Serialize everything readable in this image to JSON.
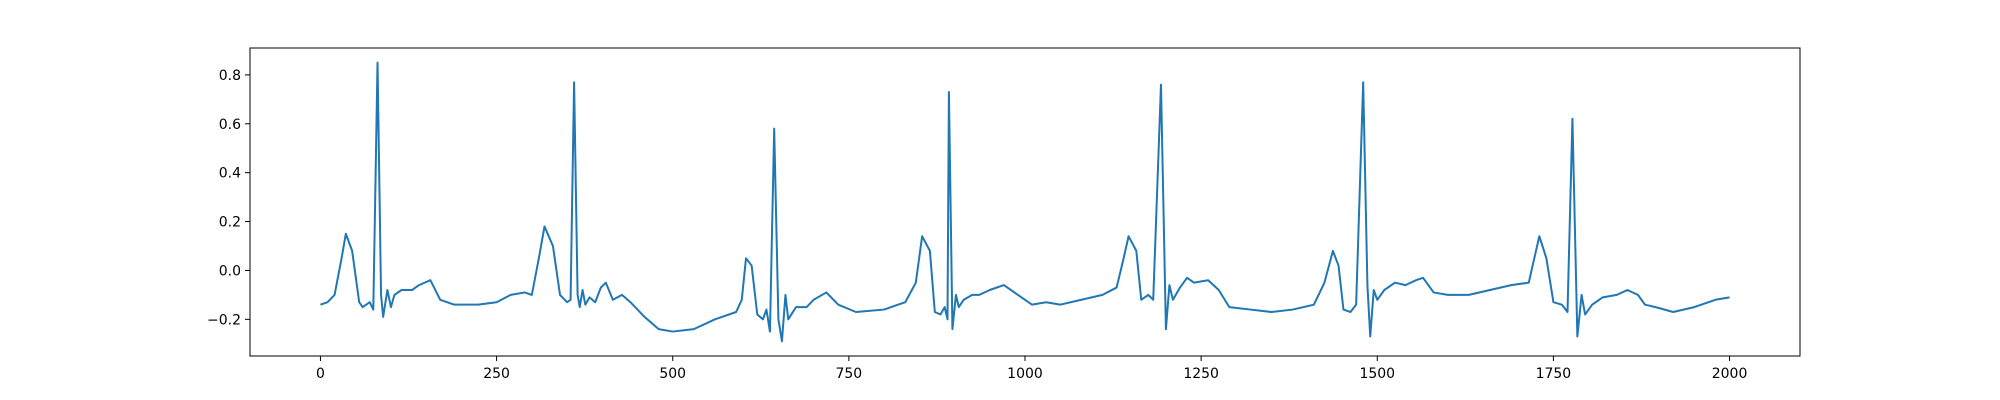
{
  "chart_data": {
    "type": "line",
    "x": [
      0,
      10,
      20,
      30,
      36,
      45,
      55,
      60,
      70,
      75,
      81,
      86,
      89,
      95,
      100,
      105,
      115,
      130,
      140,
      156,
      170,
      190,
      210,
      224,
      250,
      270,
      290,
      300,
      310,
      318,
      330,
      340,
      350,
      355,
      360,
      365,
      368,
      372,
      376,
      382,
      390,
      398,
      405,
      415,
      428,
      440,
      460,
      480,
      500,
      530,
      560,
      590,
      598,
      604,
      612,
      620,
      628,
      633,
      638,
      644,
      650,
      655,
      660,
      664,
      675,
      690,
      700,
      718,
      735,
      760,
      800,
      830,
      845,
      854,
      865,
      872,
      880,
      886,
      890,
      892,
      897,
      902,
      906,
      913,
      925,
      935,
      950,
      970,
      990,
      1010,
      1030,
      1050,
      1080,
      1110,
      1130,
      1140,
      1147,
      1158,
      1165,
      1175,
      1182,
      1193,
      1200,
      1205,
      1210,
      1220,
      1230,
      1240,
      1260,
      1275,
      1290,
      1320,
      1350,
      1380,
      1410,
      1425,
      1437,
      1445,
      1452,
      1462,
      1470,
      1480,
      1486,
      1490,
      1495,
      1500,
      1510,
      1525,
      1540,
      1555,
      1565,
      1580,
      1600,
      1630,
      1660,
      1690,
      1715,
      1730,
      1740,
      1750,
      1762,
      1770,
      1777,
      1784,
      1790,
      1795,
      1805,
      1820,
      1840,
      1855,
      1870,
      1880,
      1895,
      1920,
      1950,
      1980,
      2000
    ],
    "series": [
      {
        "color": "#1f77b4",
        "values": [
          -0.14,
          -0.13,
          -0.1,
          0.05,
          0.15,
          0.08,
          -0.13,
          -0.15,
          -0.13,
          -0.16,
          0.85,
          -0.1,
          -0.19,
          -0.08,
          -0.15,
          -0.1,
          -0.08,
          -0.08,
          -0.06,
          -0.04,
          -0.12,
          -0.14,
          -0.14,
          -0.14,
          -0.13,
          -0.1,
          -0.09,
          -0.1,
          0.05,
          0.18,
          0.1,
          -0.1,
          -0.13,
          -0.12,
          0.77,
          -0.1,
          -0.15,
          -0.08,
          -0.14,
          -0.11,
          -0.13,
          -0.07,
          -0.05,
          -0.12,
          -0.1,
          -0.13,
          -0.19,
          -0.24,
          -0.25,
          -0.24,
          -0.2,
          -0.17,
          -0.12,
          0.05,
          0.02,
          -0.18,
          -0.2,
          -0.16,
          -0.25,
          0.58,
          -0.2,
          -0.29,
          -0.1,
          -0.2,
          -0.15,
          -0.15,
          -0.12,
          -0.09,
          -0.14,
          -0.17,
          -0.16,
          -0.13,
          -0.05,
          0.14,
          0.08,
          -0.17,
          -0.18,
          -0.15,
          -0.2,
          0.73,
          -0.24,
          -0.1,
          -0.15,
          -0.12,
          -0.1,
          -0.1,
          -0.08,
          -0.06,
          -0.1,
          -0.14,
          -0.13,
          -0.14,
          -0.12,
          -0.1,
          -0.07,
          0.05,
          0.14,
          0.08,
          -0.12,
          -0.1,
          -0.12,
          0.76,
          -0.24,
          -0.06,
          -0.12,
          -0.07,
          -0.03,
          -0.05,
          -0.04,
          -0.08,
          -0.15,
          -0.16,
          -0.17,
          -0.16,
          -0.14,
          -0.05,
          0.08,
          0.02,
          -0.16,
          -0.17,
          -0.14,
          0.77,
          -0.06,
          -0.27,
          -0.08,
          -0.12,
          -0.08,
          -0.05,
          -0.06,
          -0.04,
          -0.03,
          -0.09,
          -0.1,
          -0.1,
          -0.08,
          -0.06,
          -0.05,
          0.14,
          0.05,
          -0.13,
          -0.14,
          -0.17,
          0.62,
          -0.27,
          -0.1,
          -0.18,
          -0.14,
          -0.11,
          -0.1,
          -0.08,
          -0.1,
          -0.14,
          -0.15,
          -0.17,
          -0.15,
          -0.12,
          -0.11
        ]
      }
    ],
    "xlim": [
      -100,
      2100
    ],
    "ylim": [
      -0.35,
      0.91
    ],
    "xticks": [
      0,
      250,
      500,
      750,
      1000,
      1250,
      1500,
      1750,
      2000
    ],
    "yticks": [
      {
        "value": -0.2,
        "label": "−0.2"
      },
      {
        "value": 0,
        "label": "0.0"
      },
      0.2,
      0.4,
      0.6,
      0.8
    ]
  }
}
